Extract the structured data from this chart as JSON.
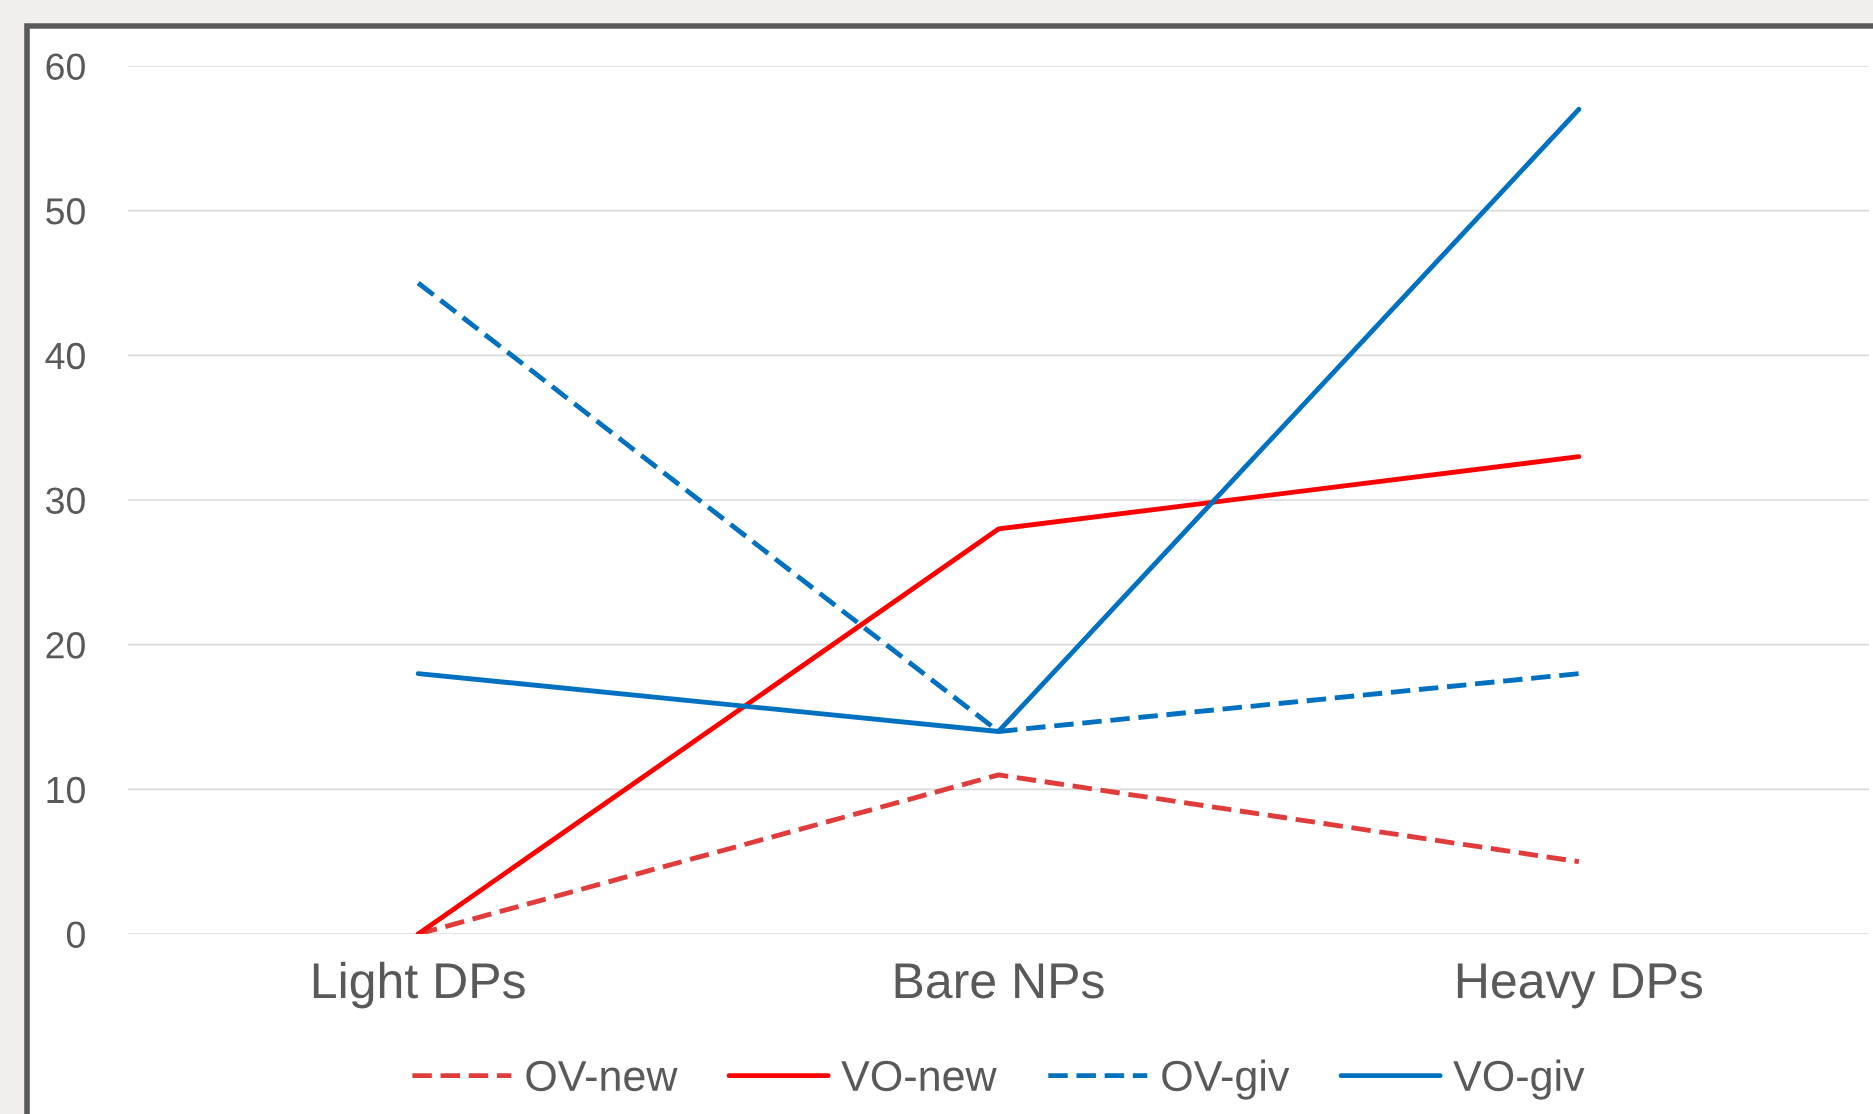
{
  "chart_data": {
    "type": "line",
    "categories": [
      "Light DPs",
      "Bare NPs",
      "Heavy DPs"
    ],
    "series": [
      {
        "name": "OV-new",
        "color": "#e03c3c",
        "values": [
          0,
          11,
          5
        ],
        "line_style": "dashed"
      },
      {
        "name": "VO-new",
        "color": "#ff0000",
        "values": [
          0,
          28,
          33
        ],
        "line_style": "solid"
      },
      {
        "name": "OV-giv",
        "color": "#0070c0",
        "values": [
          45,
          14,
          18
        ],
        "line_style": "dashed"
      },
      {
        "name": "VO-giv",
        "color": "#0070c0",
        "values": [
          18,
          14,
          57
        ],
        "line_style": "solid"
      }
    ],
    "ylim": [
      0,
      60
    ],
    "yticks": [
      0,
      10,
      20,
      30,
      40,
      50,
      60
    ],
    "grid": "y",
    "legend": "bottom",
    "marker": "none"
  }
}
